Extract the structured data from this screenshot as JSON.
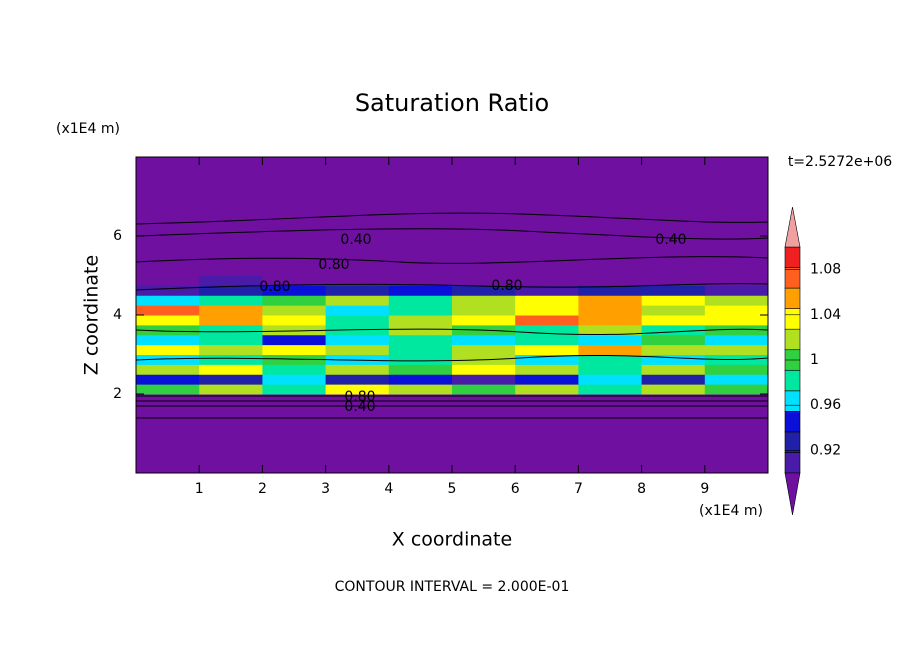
{
  "chart_data": {
    "type": "contour",
    "title": "Saturation Ratio",
    "xlabel": "X coordinate",
    "ylabel": "Z coordinate",
    "xunit": "(x1E4 m)",
    "yunit": "(x1E4 m)",
    "time_label": "t=2.5272e+06",
    "footer": "CONTOUR INTERVAL = 2.000E-01",
    "xlim": [
      0,
      10
    ],
    "ylim": [
      0,
      8
    ],
    "xticks": [
      1,
      2,
      3,
      4,
      5,
      6,
      7,
      8,
      9
    ],
    "yticks": [
      2,
      4,
      6
    ],
    "x": [
      0,
      1,
      2,
      3,
      4,
      5,
      6,
      7,
      8,
      9,
      10
    ],
    "z": [
      0,
      2,
      2.25,
      2.5,
      2.75,
      3,
      3.25,
      3.5,
      3.75,
      4,
      4.25,
      4.5,
      4.75,
      5,
      8
    ],
    "values": [
      [
        0.5,
        0.5,
        0.5,
        0.5,
        0.5,
        0.5,
        0.5,
        0.5,
        0.5,
        0.5
      ],
      [
        1.0,
        1.02,
        0.99,
        1.03,
        1.01,
        1.0,
        1.02,
        0.99,
        1.01,
        1.0
      ],
      [
        0.95,
        0.93,
        0.97,
        0.92,
        0.94,
        0.91,
        0.95,
        0.96,
        0.93,
        0.97
      ],
      [
        1.01,
        1.03,
        0.99,
        1.02,
        1.0,
        1.03,
        1.01,
        0.98,
        1.02,
        1.0
      ],
      [
        0.97,
        0.99,
        1.0,
        0.96,
        0.98,
        1.01,
        0.97,
        0.99,
        0.96,
        0.98
      ],
      [
        1.03,
        1.02,
        1.04,
        1.01,
        0.99,
        1.02,
        1.03,
        1.05,
        1.02,
        1.01
      ],
      [
        0.96,
        0.98,
        0.95,
        0.97,
        0.99,
        0.96,
        0.98,
        0.97,
        1.0,
        0.97
      ],
      [
        1.0,
        0.99,
        1.01,
        0.98,
        1.02,
        1.0,
        0.99,
        1.01,
        0.98,
        1.0
      ],
      [
        1.04,
        1.06,
        1.03,
        0.98,
        1.02,
        1.04,
        1.07,
        1.05,
        1.03,
        1.04
      ],
      [
        1.08,
        1.05,
        1.02,
        0.97,
        0.99,
        1.01,
        1.03,
        1.06,
        1.02,
        1.04
      ],
      [
        0.97,
        0.99,
        1.0,
        1.02,
        0.98,
        1.01,
        1.03,
        1.05,
        1.04,
        1.02
      ],
      [
        0.91,
        0.93,
        0.95,
        0.92,
        0.94,
        0.92,
        0.91,
        0.93,
        0.92,
        0.91
      ],
      [
        0.85,
        0.91,
        0.88,
        0.86,
        0.84,
        0.83,
        0.85,
        0.84,
        0.86,
        0.85
      ],
      [
        0.5,
        0.5,
        0.5,
        0.5,
        0.5,
        0.5,
        0.5,
        0.5,
        0.5,
        0.5
      ]
    ],
    "clim": [
      0.9,
      1.1
    ],
    "cticks": [
      0.92,
      0.96,
      1,
      1.04,
      1.08
    ],
    "colors": [
      "#7010a0",
      "#4a1aa8",
      "#2020a8",
      "#0a10d8",
      "#00e0ff",
      "#00e8a0",
      "#30d040",
      "#b0e020",
      "#ffff00",
      "#ffa000",
      "#ff6020",
      "#f02020",
      "#f0a0a0"
    ],
    "contour_labels": [
      "0.40",
      "0.40",
      "0.80",
      "0.80",
      "0.80",
      "0.80",
      "0.40"
    ]
  }
}
